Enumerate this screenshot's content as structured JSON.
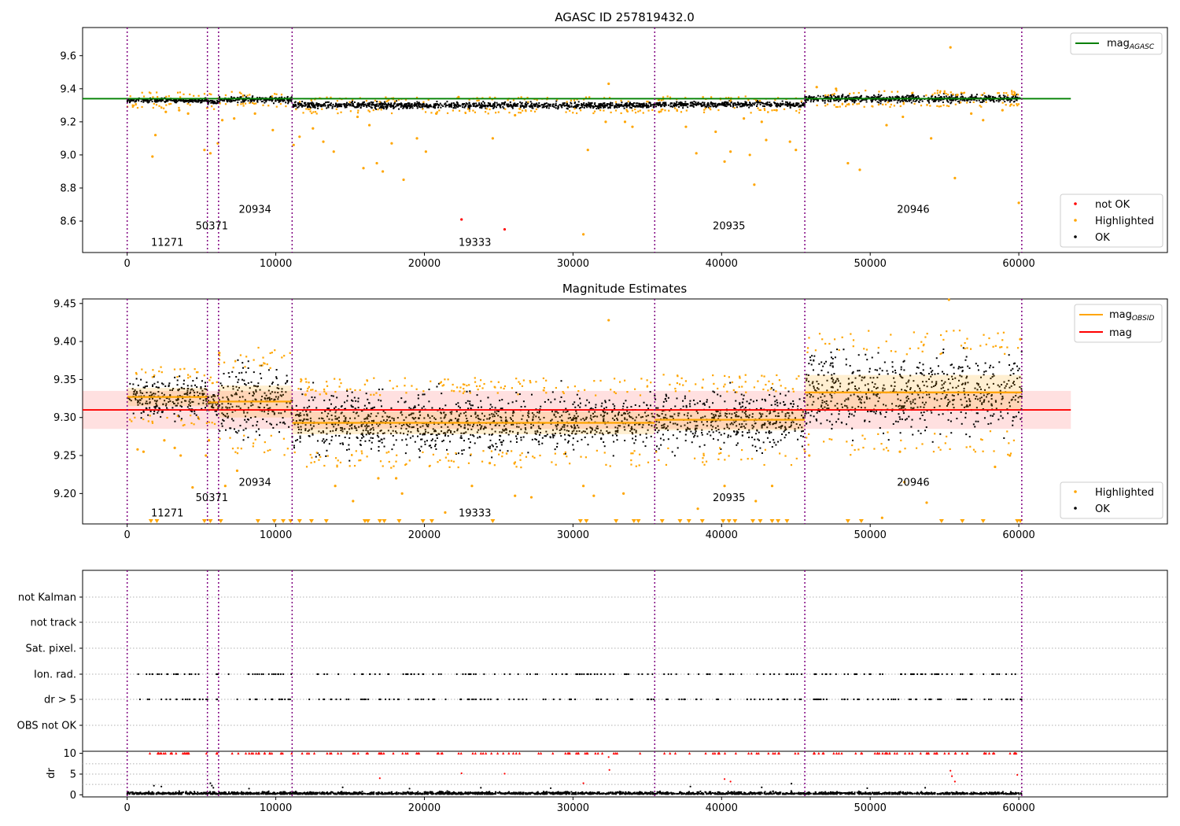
{
  "chart_data": [
    {
      "type": "scatter",
      "title": "AGASC ID 257819432.0",
      "xlim": [
        -3000,
        70000
      ],
      "ylim": [
        8.41,
        9.77
      ],
      "x_ticks": [
        0,
        10000,
        20000,
        30000,
        40000,
        50000,
        60000
      ],
      "y_ticks": [
        8.6,
        8.8,
        9.0,
        9.2,
        9.4,
        9.6
      ],
      "legend": [
        {
          "label": "mag_AGASC",
          "text": "mag",
          "sub": "AGASC",
          "color": "#008000",
          "marker": "line",
          "placement": "top-right"
        }
      ],
      "legend2": [
        {
          "label": "not OK",
          "color": "#ff0000",
          "marker": "dot"
        },
        {
          "label": "Highlighted",
          "color": "#ffa500",
          "marker": "dot"
        },
        {
          "label": "OK",
          "color": "#000000",
          "marker": "dot"
        }
      ],
      "legend2_placement": "bottom-right",
      "ref_line": {
        "y": 9.34,
        "x_range": [
          -3000,
          63500
        ],
        "color": "#008000"
      },
      "vlines": [
        0,
        5400,
        6150,
        11100,
        35500,
        45600,
        60200
      ],
      "obsid_labels": [
        {
          "text": "11271",
          "x": 2700,
          "y": 8.45
        },
        {
          "text": "50371",
          "x": 5700,
          "y": 8.55
        },
        {
          "text": "20934",
          "x": 8600,
          "y": 8.65
        },
        {
          "text": "19333",
          "x": 23400,
          "y": 8.45
        },
        {
          "text": "20935",
          "x": 40500,
          "y": 8.55
        },
        {
          "text": "20946",
          "x": 52900,
          "y": 8.65
        }
      ],
      "segments": [
        {
          "x": [
            0,
            5400
          ],
          "mean": 9.33,
          "spread": 0.012
        },
        {
          "x": [
            5400,
            6150
          ],
          "mean": 9.32,
          "spread": 0.012
        },
        {
          "x": [
            6150,
            11100
          ],
          "mean": 9.335,
          "spread": 0.018
        },
        {
          "x": [
            11100,
            35500
          ],
          "mean": 9.3,
          "spread": 0.018
        },
        {
          "x": [
            35500,
            45600
          ],
          "mean": 9.305,
          "spread": 0.016
        },
        {
          "x": [
            45600,
            60200
          ],
          "mean": 9.34,
          "spread": 0.022
        }
      ],
      "not_ok_points": [
        {
          "x": 22500,
          "y": 8.61
        },
        {
          "x": 25400,
          "y": 8.55
        }
      ],
      "highlighted_points": [
        {
          "x": 1700,
          "y": 8.99
        },
        {
          "x": 1900,
          "y": 9.12
        },
        {
          "x": 2600,
          "y": 9.26
        },
        {
          "x": 3500,
          "y": 9.27
        },
        {
          "x": 4100,
          "y": 9.25
        },
        {
          "x": 5200,
          "y": 9.03
        },
        {
          "x": 5600,
          "y": 9.01
        },
        {
          "x": 6100,
          "y": 9.07
        },
        {
          "x": 6400,
          "y": 9.21
        },
        {
          "x": 7200,
          "y": 9.22
        },
        {
          "x": 8600,
          "y": 9.25
        },
        {
          "x": 9800,
          "y": 9.15
        },
        {
          "x": 11200,
          "y": 9.06
        },
        {
          "x": 11600,
          "y": 9.11
        },
        {
          "x": 12500,
          "y": 9.16
        },
        {
          "x": 13200,
          "y": 9.08
        },
        {
          "x": 13900,
          "y": 9.02
        },
        {
          "x": 15500,
          "y": 9.23
        },
        {
          "x": 15900,
          "y": 8.92
        },
        {
          "x": 16300,
          "y": 9.18
        },
        {
          "x": 16800,
          "y": 8.95
        },
        {
          "x": 17200,
          "y": 8.9
        },
        {
          "x": 17800,
          "y": 9.07
        },
        {
          "x": 18600,
          "y": 8.85
        },
        {
          "x": 19500,
          "y": 9.1
        },
        {
          "x": 20100,
          "y": 9.02
        },
        {
          "x": 20800,
          "y": 9.25
        },
        {
          "x": 22300,
          "y": 9.35
        },
        {
          "x": 24600,
          "y": 9.1
        },
        {
          "x": 26100,
          "y": 9.24
        },
        {
          "x": 30700,
          "y": 8.52
        },
        {
          "x": 31000,
          "y": 9.03
        },
        {
          "x": 32200,
          "y": 9.2
        },
        {
          "x": 32400,
          "y": 9.43
        },
        {
          "x": 33500,
          "y": 9.2
        },
        {
          "x": 34000,
          "y": 9.17
        },
        {
          "x": 35800,
          "y": 9.26
        },
        {
          "x": 37600,
          "y": 9.17
        },
        {
          "x": 38300,
          "y": 9.01
        },
        {
          "x": 39600,
          "y": 9.14
        },
        {
          "x": 40200,
          "y": 8.96
        },
        {
          "x": 40600,
          "y": 9.02
        },
        {
          "x": 41500,
          "y": 9.22
        },
        {
          "x": 41900,
          "y": 9.0
        },
        {
          "x": 42200,
          "y": 8.82
        },
        {
          "x": 42700,
          "y": 9.2
        },
        {
          "x": 43000,
          "y": 9.09
        },
        {
          "x": 43700,
          "y": 9.27
        },
        {
          "x": 44600,
          "y": 9.08
        },
        {
          "x": 45000,
          "y": 9.03
        },
        {
          "x": 46400,
          "y": 9.41
        },
        {
          "x": 47700,
          "y": 9.4
        },
        {
          "x": 48500,
          "y": 8.95
        },
        {
          "x": 49300,
          "y": 8.91
        },
        {
          "x": 51100,
          "y": 9.18
        },
        {
          "x": 52200,
          "y": 9.23
        },
        {
          "x": 54100,
          "y": 9.1
        },
        {
          "x": 55400,
          "y": 9.65
        },
        {
          "x": 55700,
          "y": 8.86
        },
        {
          "x": 56800,
          "y": 9.25
        },
        {
          "x": 57600,
          "y": 9.21
        },
        {
          "x": 58900,
          "y": 9.27
        },
        {
          "x": 60000,
          "y": 8.71
        }
      ]
    },
    {
      "type": "scatter",
      "title": "Magnitude Estimates",
      "xlim": [
        -3000,
        70000
      ],
      "ylim": [
        9.16,
        9.456
      ],
      "x_ticks": [
        0,
        10000,
        20000,
        30000,
        40000,
        50000,
        60000
      ],
      "y_ticks": [
        9.2,
        9.25,
        9.3,
        9.35,
        9.4,
        9.45
      ],
      "legend": [
        {
          "label": "mag_OBSID",
          "text": "mag",
          "sub": "OBSID",
          "color": "#ffa500",
          "marker": "line"
        },
        {
          "label": "mag",
          "text": "mag",
          "sub": "",
          "color": "#ff0000",
          "marker": "line"
        }
      ],
      "legend_placement": "top-right",
      "legend2": [
        {
          "label": "Highlighted",
          "color": "#ffa500",
          "marker": "dot"
        },
        {
          "label": "OK",
          "color": "#000000",
          "marker": "dot"
        }
      ],
      "legend2_placement": "bottom-right",
      "mag_line": {
        "y": 9.31,
        "band": [
          9.285,
          9.335
        ],
        "x_range": [
          -3000,
          63500
        ]
      },
      "vlines": [
        0,
        5400,
        6150,
        11100,
        35500,
        45600,
        60200
      ],
      "obsid_labels": [
        {
          "text": "11271",
          "x": 2700,
          "y": 9.17
        },
        {
          "text": "50371",
          "x": 5700,
          "y": 9.19
        },
        {
          "text": "20934",
          "x": 8600,
          "y": 9.21
        },
        {
          "text": "19333",
          "x": 23400,
          "y": 9.17
        },
        {
          "text": "20935",
          "x": 40500,
          "y": 9.19
        },
        {
          "text": "20946",
          "x": 52900,
          "y": 9.21
        }
      ],
      "obsid_means": [
        {
          "x": [
            0,
            5400
          ],
          "mag": 9.327,
          "band": [
            9.315,
            9.339
          ],
          "spread": 0.012
        },
        {
          "x": [
            5400,
            6150
          ],
          "mag": 9.32,
          "band": [
            9.31,
            9.33
          ],
          "spread": 0.01
        },
        {
          "x": [
            6150,
            11100
          ],
          "mag": 9.321,
          "band": [
            9.3,
            9.342
          ],
          "spread": 0.022
        },
        {
          "x": [
            11100,
            35500
          ],
          "mag": 9.293,
          "band": [
            9.278,
            9.308
          ],
          "spread": 0.018
        },
        {
          "x": [
            35500,
            45600
          ],
          "mag": 9.297,
          "band": [
            9.283,
            9.311
          ],
          "spread": 0.018
        },
        {
          "x": [
            45600,
            60200
          ],
          "mag": 9.333,
          "band": [
            9.31,
            9.356
          ],
          "spread": 0.025
        }
      ],
      "down_markers_x": [
        1600,
        2000,
        5200,
        5600,
        6300,
        8800,
        9900,
        10500,
        11000,
        11600,
        12400,
        13400,
        16000,
        16200,
        17000,
        17300,
        18300,
        19900,
        20500,
        24600,
        30500,
        30900,
        32900,
        34100,
        34400,
        36000,
        37200,
        37800,
        38700,
        40100,
        40500,
        40900,
        42100,
        42600,
        43400,
        43800,
        44400,
        48500,
        49400,
        54800,
        56200,
        57600,
        59900,
        60100
      ],
      "highlighted_points": [
        {
          "x": 700,
          "y": 9.258
        },
        {
          "x": 1100,
          "y": 9.255
        },
        {
          "x": 2500,
          "y": 9.27
        },
        {
          "x": 3200,
          "y": 9.26
        },
        {
          "x": 3600,
          "y": 9.25
        },
        {
          "x": 4400,
          "y": 9.208
        },
        {
          "x": 5300,
          "y": 9.25
        },
        {
          "x": 5500,
          "y": 9.27
        },
        {
          "x": 6200,
          "y": 9.385
        },
        {
          "x": 6600,
          "y": 9.21
        },
        {
          "x": 7400,
          "y": 9.23
        },
        {
          "x": 12000,
          "y": 9.33
        },
        {
          "x": 14000,
          "y": 9.21
        },
        {
          "x": 15200,
          "y": 9.19
        },
        {
          "x": 16900,
          "y": 9.22
        },
        {
          "x": 18100,
          "y": 9.22
        },
        {
          "x": 18500,
          "y": 9.2
        },
        {
          "x": 21400,
          "y": 9.175
        },
        {
          "x": 23200,
          "y": 9.21
        },
        {
          "x": 24400,
          "y": 9.24
        },
        {
          "x": 26100,
          "y": 9.197
        },
        {
          "x": 27200,
          "y": 9.195
        },
        {
          "x": 30700,
          "y": 9.21
        },
        {
          "x": 31400,
          "y": 9.197
        },
        {
          "x": 32400,
          "y": 9.428
        },
        {
          "x": 33400,
          "y": 9.2
        },
        {
          "x": 38400,
          "y": 9.18
        },
        {
          "x": 40200,
          "y": 9.21
        },
        {
          "x": 42300,
          "y": 9.19
        },
        {
          "x": 43400,
          "y": 9.21
        },
        {
          "x": 45900,
          "y": 9.25
        },
        {
          "x": 50800,
          "y": 9.168
        },
        {
          "x": 52000,
          "y": 9.255
        },
        {
          "x": 52300,
          "y": 9.215
        },
        {
          "x": 53800,
          "y": 9.188
        },
        {
          "x": 55300,
          "y": 9.455
        },
        {
          "x": 58400,
          "y": 9.235
        },
        {
          "x": 59400,
          "y": 9.25
        },
        {
          "x": 60100,
          "y": 9.403
        }
      ]
    },
    {
      "type": "scatter",
      "title": "",
      "xlim": [
        -3000,
        70000
      ],
      "flag_rows": [
        "not Kalman",
        "not track",
        "Sat. pixel.",
        "Ion. rad.",
        "dr > 5",
        "OBS not OK"
      ],
      "flags_set": [
        "Ion. rad.",
        "dr > 5"
      ],
      "flag_x_ranges": [
        [
          0,
          5400
        ],
        [
          5400,
          6150
        ],
        [
          6150,
          11100
        ],
        [
          11100,
          35500
        ],
        [
          35500,
          45600
        ],
        [
          45600,
          60200
        ]
      ],
      "vlines": [
        0,
        5400,
        6150,
        11100,
        35500,
        45600,
        60200
      ],
      "grid": "dotted"
    },
    {
      "type": "scatter",
      "title": "",
      "ylabel": "dr",
      "xlim": [
        -3000,
        70000
      ],
      "ylim": [
        -0.5,
        10.5
      ],
      "x_ticks": [
        0,
        10000,
        20000,
        30000,
        40000,
        50000,
        60000
      ],
      "y_ticks": [
        0,
        5,
        10
      ],
      "dr_capped_value": 10,
      "dr_outliers_red": [
        {
          "x": 22500,
          "y": 5.2
        },
        {
          "x": 25400,
          "y": 5.1
        },
        {
          "x": 17000,
          "y": 4.0
        },
        {
          "x": 30700,
          "y": 2.8
        },
        {
          "x": 32400,
          "y": 9.1
        },
        {
          "x": 32450,
          "y": 6.0
        },
        {
          "x": 40200,
          "y": 3.8
        },
        {
          "x": 40600,
          "y": 3.2
        },
        {
          "x": 55400,
          "y": 5.8
        },
        {
          "x": 55500,
          "y": 4.5
        },
        {
          "x": 55700,
          "y": 3.2
        },
        {
          "x": 59900,
          "y": 4.8
        }
      ],
      "dr_black_extra": [
        {
          "x": 1800,
          "y": 2.2
        },
        {
          "x": 2300,
          "y": 2.0
        },
        {
          "x": 5600,
          "y": 2.8
        },
        {
          "x": 5700,
          "y": 2.2
        },
        {
          "x": 5800,
          "y": 1.7
        },
        {
          "x": 8200,
          "y": 1.5
        },
        {
          "x": 14500,
          "y": 1.8
        },
        {
          "x": 19000,
          "y": 1.5
        },
        {
          "x": 23800,
          "y": 1.7
        },
        {
          "x": 28500,
          "y": 1.6
        },
        {
          "x": 37900,
          "y": 2.0
        },
        {
          "x": 42700,
          "y": 1.8
        },
        {
          "x": 44700,
          "y": 2.7
        },
        {
          "x": 49800,
          "y": 1.6
        },
        {
          "x": 53700,
          "y": 1.7
        }
      ],
      "vlines": [
        0,
        5400,
        6150,
        11100,
        35500,
        45600,
        60200
      ]
    }
  ]
}
